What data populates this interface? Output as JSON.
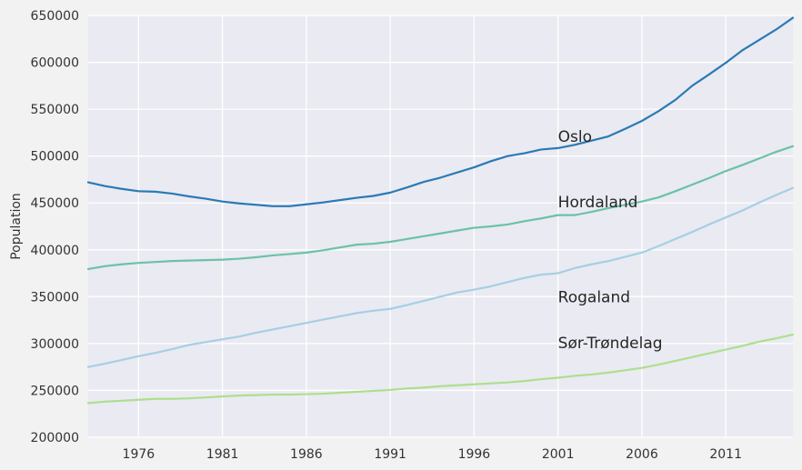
{
  "chart_data": {
    "type": "line",
    "title": "",
    "xlabel": "",
    "ylabel": "Population",
    "xlim": [
      1973,
      2015
    ],
    "ylim": [
      200000,
      650000
    ],
    "grid": true,
    "legend": "none",
    "x_ticks": [
      1976,
      1981,
      1986,
      1991,
      1996,
      2001,
      2006,
      2011
    ],
    "y_ticks": [
      200000,
      250000,
      300000,
      350000,
      400000,
      450000,
      500000,
      550000,
      600000,
      650000
    ],
    "x": [
      1973,
      1974,
      1975,
      1976,
      1977,
      1978,
      1979,
      1980,
      1981,
      1982,
      1983,
      1984,
      1985,
      1986,
      1987,
      1988,
      1989,
      1990,
      1991,
      1992,
      1993,
      1994,
      1995,
      1996,
      1997,
      1998,
      1999,
      2000,
      2001,
      2002,
      2003,
      2004,
      2005,
      2006,
      2007,
      2008,
      2009,
      2010,
      2011,
      2012,
      2013,
      2014,
      2015
    ],
    "series": [
      {
        "name": "Oslo",
        "color": "#2a7ab5",
        "values": [
          472000,
          468000,
          465000,
          462500,
          462000,
          460000,
          457000,
          454500,
          451500,
          449500,
          448000,
          446500,
          446500,
          448500,
          450500,
          453000,
          455500,
          457500,
          461000,
          466500,
          472500,
          477000,
          482500,
          488000,
          494500,
          500000,
          503000,
          507000,
          508500,
          512000,
          516500,
          521000,
          529000,
          537500,
          548000,
          560000,
          575000,
          587000,
          599500,
          613000,
          624000,
          635000,
          647500
        ],
        "label_at": [
          2001,
          521000
        ]
      },
      {
        "name": "Hordaland",
        "color": "#6bc2a6",
        "values": [
          379500,
          382500,
          384500,
          386000,
          387000,
          388000,
          388500,
          389000,
          389500,
          390500,
          392000,
          394000,
          395500,
          397000,
          399500,
          402500,
          405500,
          406500,
          408500,
          411500,
          414500,
          417500,
          420500,
          423500,
          425000,
          427000,
          430500,
          433500,
          437000,
          437000,
          440500,
          444500,
          448000,
          451500,
          456000,
          462500,
          469500,
          476500,
          484000,
          490500,
          497500,
          504500,
          510500
        ],
        "label_at": [
          2001,
          451000
        ]
      },
      {
        "name": "Rogaland",
        "color": "#a6cfe3",
        "values": [
          275000,
          278500,
          282500,
          286500,
          290000,
          294000,
          298500,
          301500,
          304500,
          307500,
          311500,
          315000,
          318500,
          322000,
          325500,
          329000,
          332500,
          335000,
          337000,
          341000,
          345500,
          350000,
          354500,
          357500,
          361000,
          365500,
          370000,
          373500,
          375000,
          380500,
          384500,
          388000,
          392500,
          397000,
          404000,
          411500,
          419000,
          427000,
          434500,
          442000,
          450500,
          458500,
          466000
        ],
        "label_at": [
          2001,
          350000
        ]
      },
      {
        "name": "Sør-Trøndelag",
        "color": "#addf8e",
        "values": [
          236500,
          238000,
          239000,
          240000,
          241000,
          241000,
          241500,
          242500,
          243500,
          244500,
          245000,
          245500,
          245500,
          246000,
          246500,
          247500,
          248500,
          249500,
          250500,
          252000,
          253000,
          254500,
          255500,
          256500,
          257500,
          258500,
          260000,
          262000,
          263500,
          265500,
          267000,
          269000,
          271500,
          274000,
          277500,
          281500,
          285500,
          289500,
          293500,
          297500,
          302000,
          305500,
          309500
        ],
        "label_at": [
          2001,
          301000
        ]
      }
    ]
  }
}
